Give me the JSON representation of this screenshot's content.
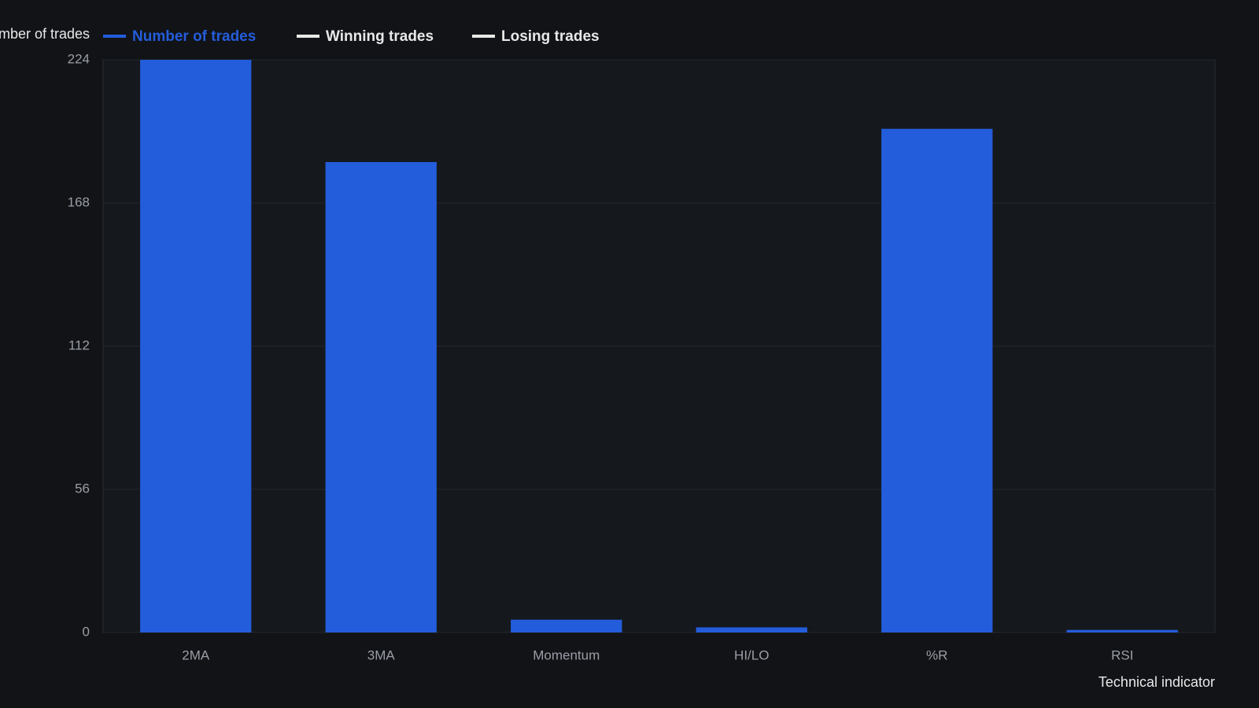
{
  "chart_data": {
    "type": "bar",
    "y_label": "Number of trades",
    "x_label": "Technical indicator",
    "categories": [
      "2MA",
      "3MA",
      "Momentum",
      "HI/LO",
      "%R",
      "RSI"
    ],
    "series": [
      {
        "name": "Number of trades",
        "color": "#245ddb",
        "values": [
          224,
          184,
          5,
          2,
          197,
          1
        ]
      },
      {
        "name": "Winning trades",
        "color": "#e8e8e8"
      },
      {
        "name": "Losing trades",
        "color": "#e8e8e8"
      }
    ],
    "ylim": [
      0,
      224
    ],
    "yticks": [
      0,
      56,
      112,
      168,
      224
    ],
    "grid": true
  }
}
